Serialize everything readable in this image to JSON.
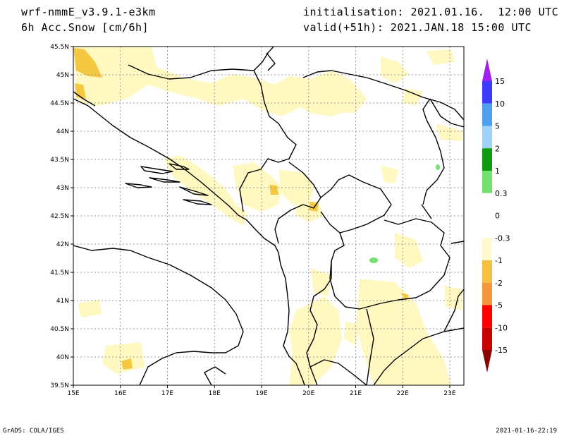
{
  "header": {
    "model": "wrf-nmmE_v3.9.1-e3km",
    "field": "6h Acc.Snow [cm/6h]",
    "init": "initialisation: 2021.01.16.  12:00 UTC",
    "valid": "valid(+51h): 2021.JAN.18 15:00 UTC"
  },
  "footer": {
    "credit": "GrADS: COLA/IGES",
    "timestamp": "2021-01-16-22:19"
  },
  "map": {
    "lat_ticks": [
      "45.5N",
      "45N",
      "44.5N",
      "44N",
      "43.5N",
      "43N",
      "42.5N",
      "42N",
      "41.5N",
      "41N",
      "40.5N",
      "40N",
      "39.5N"
    ],
    "lon_ticks": [
      "15E",
      "16E",
      "17E",
      "18E",
      "19E",
      "20E",
      "21E",
      "22E",
      "23E"
    ],
    "lat_range": [
      39.5,
      45.5
    ],
    "lon_range": [
      15,
      23.3
    ],
    "grid": true
  },
  "colorbar": {
    "labels": [
      "15",
      "10",
      "5",
      "2",
      "1",
      "0.3",
      "0",
      "-0.3",
      "-1",
      "-2",
      "-5",
      "-10",
      "-15"
    ],
    "colors": [
      "#a020f0",
      "#3c3cff",
      "#50a0f0",
      "#a0d2fa",
      "#0f9b0f",
      "#74e070",
      "#ffffff",
      "#ffffff",
      "#fffacd",
      "#f5c040",
      "#f5963c",
      "#ff0000",
      "#c80000",
      "#8b0000"
    ]
  },
  "snow_colors": {
    "light": "#fff8c0",
    "medium": "#f5c842",
    "green": "#74e070"
  }
}
